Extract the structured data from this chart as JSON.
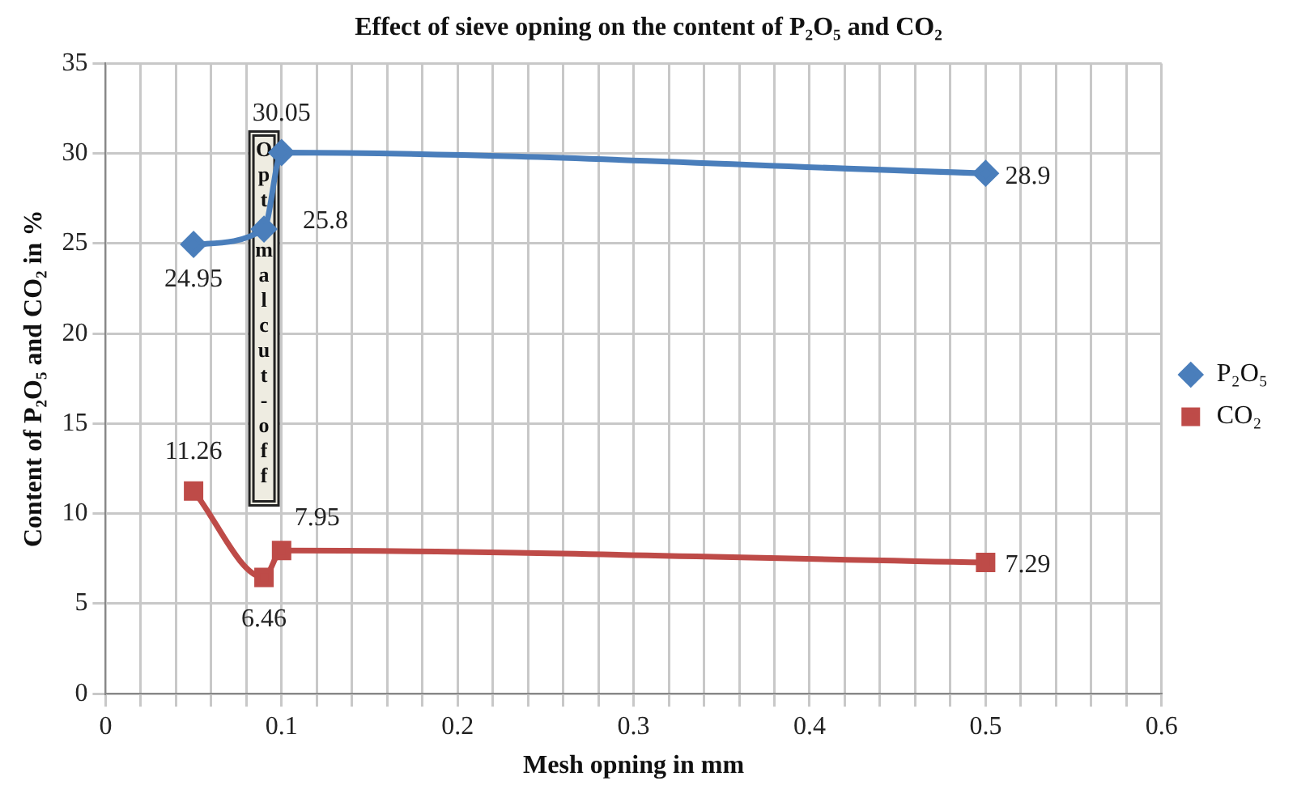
{
  "chart_data": {
    "type": "line",
    "title": "Effect of sieve opning on the content of P₂O₅ and CO₂",
    "xlabel": "Mesh opning in mm",
    "ylabel": "Content of P₂O₅ and CO₂ in %",
    "x": [
      0.05,
      0.09,
      0.1,
      0.5
    ],
    "series": [
      {
        "name": "P₂O₅",
        "color": "#4a7ebb",
        "marker": "diamond",
        "values": [
          24.95,
          25.8,
          30.05,
          28.9
        ]
      },
      {
        "name": "CO₂",
        "color": "#be4b48",
        "marker": "square",
        "values": [
          11.26,
          6.46,
          7.95,
          7.29
        ]
      }
    ],
    "xlim": [
      0,
      0.6
    ],
    "xticks": [
      0,
      {
        "value": 0.02,
        "label": null
      },
      {
        "value": 0.04,
        "label": null
      },
      {
        "value": 0.06,
        "label": null
      },
      {
        "value": 0.08,
        "label": null
      },
      0.1,
      {
        "value": 0.12,
        "label": null
      },
      {
        "value": 0.14,
        "label": null
      },
      {
        "value": 0.16,
        "label": null
      },
      {
        "value": 0.18,
        "label": null
      },
      0.2,
      {
        "value": 0.22,
        "label": null
      },
      {
        "value": 0.24,
        "label": null
      },
      {
        "value": 0.26,
        "label": null
      },
      {
        "value": 0.28,
        "label": null
      },
      0.3,
      {
        "value": 0.32,
        "label": null
      },
      {
        "value": 0.34,
        "label": null
      },
      {
        "value": 0.36,
        "label": null
      },
      {
        "value": 0.38,
        "label": null
      },
      0.4,
      {
        "value": 0.42,
        "label": null
      },
      {
        "value": 0.44,
        "label": null
      },
      {
        "value": 0.46,
        "label": null
      },
      {
        "value": 0.48,
        "label": null
      },
      0.5,
      {
        "value": 0.52,
        "label": null
      },
      {
        "value": 0.54,
        "label": null
      },
      {
        "value": 0.56,
        "label": null
      },
      {
        "value": 0.58,
        "label": null
      },
      0.6
    ],
    "ylim": [
      0,
      35
    ],
    "yticks": [
      0,
      5,
      10,
      15,
      20,
      25,
      30,
      35
    ],
    "grid": true,
    "legend": "right",
    "data_labels": true,
    "annotations": [
      "Optimal cut-off"
    ]
  }
}
